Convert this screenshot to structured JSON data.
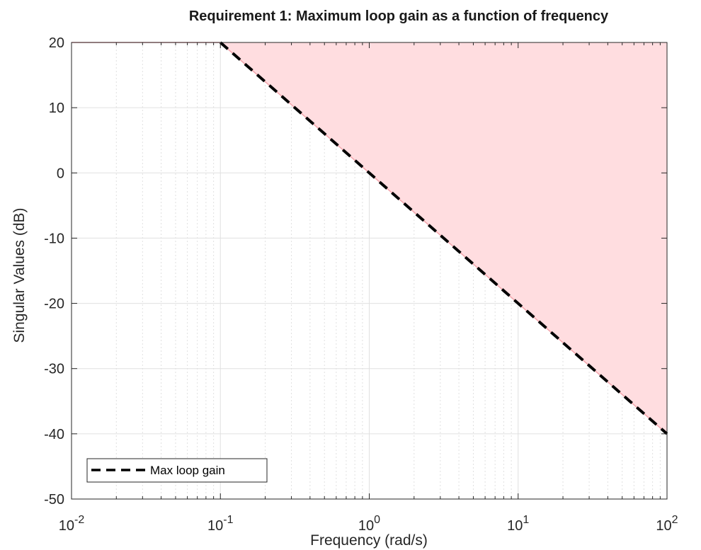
{
  "chart_data": {
    "type": "area",
    "title": "Requirement 1: Maximum loop gain as a function of frequency",
    "xlabel": "Frequency (rad/s)",
    "ylabel": "Singular Values (dB)",
    "xscale": "log",
    "xlim": [
      0.01,
      100
    ],
    "ylim": [
      -50,
      20
    ],
    "yticks": [
      20,
      10,
      0,
      -10,
      -20,
      -30,
      -40,
      -50
    ],
    "xticks": [
      {
        "value": 0.01,
        "base": "10",
        "exp": "-2"
      },
      {
        "value": 0.1,
        "base": "10",
        "exp": "-1"
      },
      {
        "value": 1,
        "base": "10",
        "exp": "0"
      },
      {
        "value": 10,
        "base": "10",
        "exp": "1"
      },
      {
        "value": 100,
        "base": "10",
        "exp": "2"
      }
    ],
    "grid": true,
    "legend_position": "bottom-left",
    "series": [
      {
        "name": "Max loop gain",
        "style": "dashed",
        "color": "#000000",
        "x": [
          0.1,
          100
        ],
        "y": [
          20,
          -40
        ]
      }
    ],
    "shaded_region": {
      "description_color": "#ffdde0",
      "edge_color": "#f4a6ad",
      "boundary_x": [
        0.01,
        0.1,
        100
      ],
      "boundary_y": [
        20,
        20,
        -40
      ],
      "fills_to": "ymax"
    },
    "colors": {
      "grid": "#e0e0e0",
      "axis": "#262626",
      "fill": "#ffdde0"
    }
  }
}
